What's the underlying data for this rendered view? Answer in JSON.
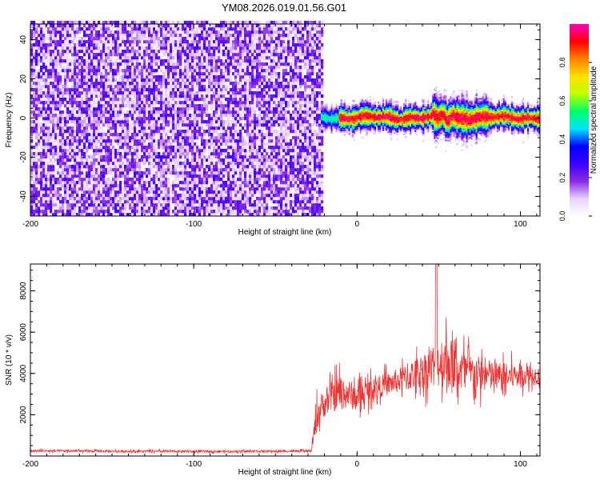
{
  "title": "YM08.2026.019.01.56.G01",
  "chart_data": [
    {
      "type": "heatmap",
      "xlabel": "Height of straight line (km)",
      "ylabel": "Frequency (Hz)",
      "xlim": [
        -200,
        112
      ],
      "ylim": [
        -50,
        48
      ],
      "xticks": [
        -200,
        -100,
        0,
        100
      ],
      "yticks": [
        -40,
        -20,
        0,
        20,
        40
      ],
      "colorbar": {
        "label": "Normalized spectral amplitude",
        "range": [
          0,
          1
        ],
        "ticks": [
          0.0,
          0.2,
          0.4,
          0.6,
          0.8
        ],
        "colors": [
          "#ffffff",
          "#e6d2ff",
          "#8a2be2",
          "#3a00ff",
          "#0000ff",
          "#00e5ff",
          "#00ff66",
          "#bfff00",
          "#ffe000",
          "#ff8000",
          "#ff0000",
          "#ff00c8"
        ]
      },
      "regions": [
        {
          "x_range": [
            -200,
            -22
          ],
          "description_amplitude": 0.12,
          "pattern": "broadband noise, all frequencies"
        },
        {
          "x_range": [
            -22,
            112
          ],
          "center_frequency": 0,
          "band_halfwidth_hz": 5,
          "peak_amplitude": 0.95
        }
      ]
    },
    {
      "type": "line",
      "xlabel": "Height of straight line (km)",
      "ylabel": "SNR (10 * v/v)",
      "xlim": [
        -200,
        112
      ],
      "ylim": [
        0,
        9300
      ],
      "xticks": [
        -200,
        -100,
        0,
        100
      ],
      "yticks": [
        2000,
        4000,
        6000,
        8000
      ],
      "color": "#ee3333",
      "series": [
        {
          "x": [
            -200,
            -150,
            -100,
            -50,
            -28,
            -25,
            -22,
            -15,
            -10,
            -5,
            0,
            10,
            20,
            30,
            40,
            50,
            55,
            60,
            70,
            80,
            90,
            100,
            112
          ],
          "y": [
            250,
            230,
            220,
            230,
            240,
            1800,
            2400,
            2900,
            3100,
            3000,
            2800,
            3300,
            3500,
            3800,
            4100,
            4500,
            4700,
            4200,
            4000,
            3900,
            3800,
            3950,
            3900
          ],
          "spread": [
            120,
            110,
            100,
            100,
            100,
            1500,
            1300,
            1500,
            1800,
            1400,
            1300,
            1100,
            1100,
            1300,
            1700,
            2400,
            2800,
            2200,
            1900,
            1600,
            1400,
            1100,
            900
          ]
        }
      ]
    }
  ]
}
